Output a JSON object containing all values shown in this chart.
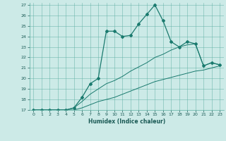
{
  "xlabel": "Humidex (Indice chaleur)",
  "ylabel": "",
  "bg_color": "#cceae7",
  "line_color": "#1a7a6e",
  "grid_color": "#5aada0",
  "xlim": [
    -0.5,
    23.5
  ],
  "ylim": [
    17,
    27.2
  ],
  "xticks": [
    0,
    1,
    2,
    3,
    4,
    5,
    6,
    7,
    8,
    9,
    10,
    11,
    12,
    13,
    14,
    15,
    16,
    17,
    18,
    19,
    20,
    21,
    22,
    23
  ],
  "yticks": [
    17,
    18,
    19,
    20,
    21,
    22,
    23,
    24,
    25,
    26,
    27
  ],
  "main_x": [
    0,
    1,
    2,
    3,
    4,
    5,
    6,
    7,
    8,
    9,
    10,
    11,
    12,
    13,
    14,
    15,
    16,
    17,
    18,
    19,
    20,
    21,
    22,
    23
  ],
  "main_y": [
    17,
    17,
    17,
    17,
    17,
    17.2,
    18.2,
    19.5,
    20,
    24.5,
    24.5,
    24,
    24.1,
    25.2,
    26.1,
    27,
    25.5,
    23.5,
    23,
    23.5,
    23.3,
    21.2,
    21.5,
    21.3
  ],
  "upper_x": [
    0,
    1,
    2,
    3,
    4,
    5,
    6,
    7,
    8,
    9,
    10,
    11,
    12,
    13,
    14,
    15,
    16,
    17,
    18,
    19,
    20,
    21,
    22,
    23
  ],
  "upper_y": [
    17,
    17,
    17,
    17,
    17,
    17.2,
    17.8,
    18.5,
    19,
    19.5,
    19.8,
    20.2,
    20.7,
    21.1,
    21.5,
    22,
    22.3,
    22.7,
    23,
    23.2,
    23.3,
    21.2,
    21.5,
    21.3
  ],
  "lower_x": [
    0,
    1,
    2,
    3,
    4,
    5,
    6,
    7,
    8,
    9,
    10,
    11,
    12,
    13,
    14,
    15,
    16,
    17,
    18,
    19,
    20,
    21,
    22,
    23
  ],
  "lower_y": [
    17,
    17,
    17,
    17,
    17,
    17,
    17.2,
    17.5,
    17.8,
    18.0,
    18.2,
    18.5,
    18.8,
    19.1,
    19.4,
    19.7,
    19.9,
    20.1,
    20.3,
    20.5,
    20.7,
    20.8,
    21.0,
    21.2
  ]
}
